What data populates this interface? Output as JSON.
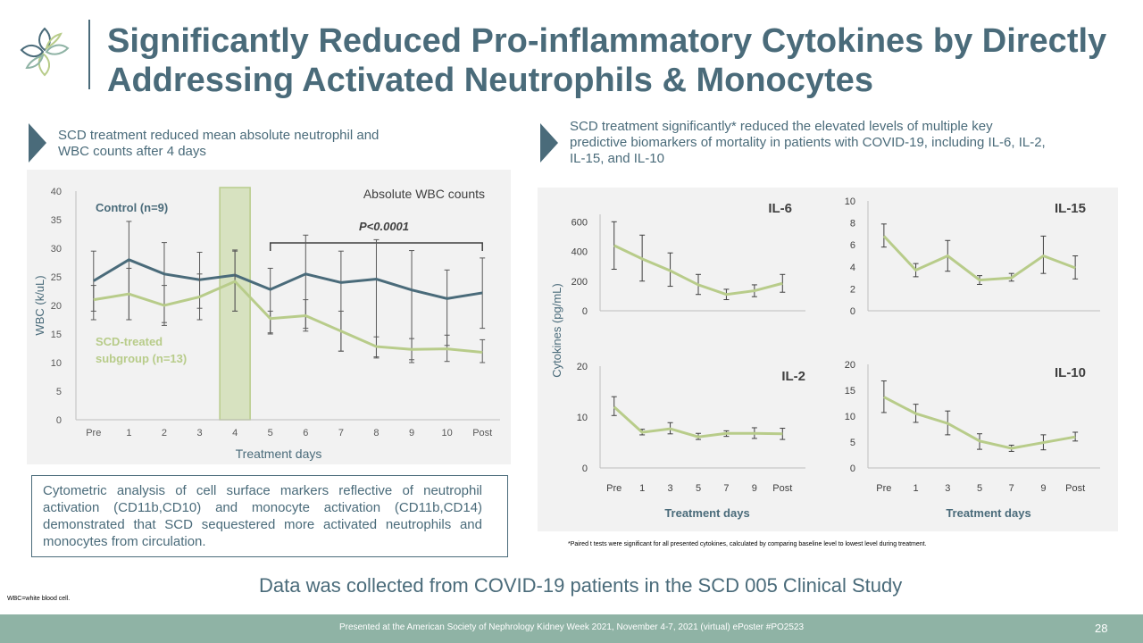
{
  "title": "Significantly Reduced Pro-inflammatory Cytokines by Directly Addressing Activated Neutrophils & Monocytes",
  "left_subtitle": "SCD treatment reduced mean absolute neutrophil and WBC counts after 4 days",
  "right_subtitle": "SCD treatment significantly* reduced the elevated levels of multiple key predictive biomarkers of mortality in patients with COVID-19, including IL-6, IL-2, IL-15, and IL-10",
  "description": "Cytometric analysis of cell surface markers reflective of neutrophil activation (CD11b,CD10) and monocyte activation (CD11b,CD14) demonstrated that SCD sequestered more activated neutrophils and monocytes from circulation.",
  "footnote": "*Paired t tests were significant for all presented cytokines, calculated by comparing baseline level to lowest level during treatment.",
  "bottom_note": "Data was collected from COVID-19 patients in the SCD 005 Clinical Study",
  "abbreviation": "WBC=white blood cell.",
  "footer": "Presented at the American Society of Nephrology Kidney Week 2021, November 4-7, 2021 (virtual) ePoster #PO2523",
  "page_number": "28",
  "colors": {
    "control": "#4a6b7a",
    "scd": "#b8cc8a",
    "highlight": "#d7e2c0",
    "accent": "#4a6b7a"
  },
  "chart_data": [
    {
      "type": "line",
      "title": "Absolute WBC counts",
      "xlabel": "Treatment days",
      "ylabel": "WBC (k/uL)",
      "ylim": [
        0,
        40
      ],
      "yticks": [
        0,
        5,
        10,
        15,
        20,
        25,
        30,
        35,
        40
      ],
      "categories": [
        "Pre",
        "1",
        "2",
        "3",
        "4",
        "5",
        "6",
        "7",
        "8",
        "9",
        "10",
        "Post"
      ],
      "highlight_category": "4",
      "significance": "P<0.0001",
      "series": [
        {
          "name": "Control (n=9)",
          "values": [
            24.3,
            28,
            25.5,
            24.5,
            25.3,
            22.8,
            25.5,
            24,
            24.6,
            22.7,
            21.2,
            22.2
          ],
          "err_low": [
            17.5,
            17.5,
            17,
            17.5,
            19,
            15,
            15.5,
            12,
            11,
            10,
            13,
            16
          ],
          "err_high": [
            29.5,
            34.7,
            31,
            29.3,
            29.5,
            26.5,
            32.3,
            29.5,
            31.5,
            29.6,
            26.2,
            28.3
          ]
        },
        {
          "name": "SCD-treated subgroup (n=13)",
          "values": [
            21,
            22,
            20,
            21.5,
            24.2,
            17.7,
            18.2,
            15.5,
            12.8,
            12.3,
            12.4,
            11.8
          ],
          "err_low": [
            19,
            17.5,
            16.5,
            19.5,
            19,
            15.2,
            16,
            12,
            10.8,
            10.5,
            10.2,
            10
          ],
          "err_high": [
            23.5,
            26.5,
            23.5,
            25.5,
            29.7,
            19,
            21,
            19,
            14.5,
            14.2,
            14.8,
            14
          ]
        }
      ]
    },
    {
      "type": "line",
      "title": "IL-6",
      "ylabel": "Cytokines (pg/mL)",
      "ylim": [
        0,
        650
      ],
      "yticks": [
        0,
        200,
        400,
        600
      ],
      "categories": [
        "Pre",
        "1",
        "3",
        "5",
        "7",
        "9",
        "Post"
      ],
      "values": [
        440,
        350,
        270,
        175,
        110,
        135,
        185
      ],
      "err_low": [
        280,
        200,
        165,
        110,
        75,
        95,
        125
      ],
      "err_high": [
        600,
        510,
        390,
        245,
        145,
        175,
        245
      ]
    },
    {
      "type": "line",
      "title": "IL-15",
      "ylim": [
        0,
        10
      ],
      "yticks": [
        0,
        2,
        4,
        6,
        8,
        10
      ],
      "categories": [
        "Pre",
        "1",
        "3",
        "5",
        "7",
        "9",
        "Post"
      ],
      "values": [
        6.8,
        3.7,
        5,
        2.8,
        3,
        5,
        3.9
      ],
      "err_low": [
        5.8,
        3.1,
        3.6,
        2.4,
        2.7,
        3.4,
        2.9
      ],
      "err_high": [
        7.9,
        4.3,
        6.4,
        3.2,
        3.4,
        6.8,
        5
      ]
    },
    {
      "type": "line",
      "title": "IL-2",
      "ylim": [
        0,
        20
      ],
      "yticks": [
        0,
        10,
        20
      ],
      "categories": [
        "Pre",
        "1",
        "3",
        "5",
        "7",
        "9",
        "Post"
      ],
      "values": [
        12,
        7,
        7.7,
        6.1,
        6.8,
        6.8,
        6.7
      ],
      "err_low": [
        10.3,
        6.5,
        6.7,
        5.6,
        6.2,
        5.8,
        5.6
      ],
      "err_high": [
        14,
        7.6,
        8.9,
        6.8,
        7.3,
        7.9,
        7.8
      ],
      "xlabel": "Treatment days"
    },
    {
      "type": "line",
      "title": "IL-10",
      "ylim": [
        0,
        20
      ],
      "yticks": [
        0,
        5,
        10,
        15,
        20
      ],
      "categories": [
        "Pre",
        "1",
        "3",
        "5",
        "7",
        "9",
        "Post"
      ],
      "values": [
        13.7,
        10.5,
        8.6,
        5.2,
        3.8,
        4.9,
        6
      ],
      "err_low": [
        10.7,
        8.8,
        6.4,
        3.6,
        3.2,
        3.5,
        5.2
      ],
      "err_high": [
        16.8,
        12.3,
        11,
        6.6,
        4.4,
        6.4,
        6.9
      ],
      "xlabel": "Treatment days"
    }
  ]
}
